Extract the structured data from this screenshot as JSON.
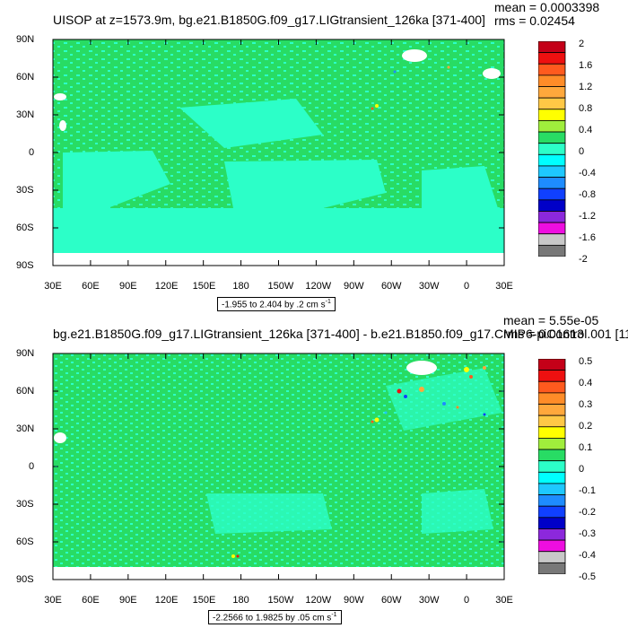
{
  "panels": [
    {
      "title": "UISOP at z=1573.9m, bg.e21.B1850G.f09_g17.LIGtransient_126ka [371-400]",
      "mean": "mean = 0.0003398",
      "rms": "rms = 0.02454",
      "range_text": "-1.955 to 2.404 by .2 cm s",
      "range_unit_exp": "-1",
      "colorbar_labels": [
        "2",
        "1.6",
        "1.2",
        "0.8",
        "0.4",
        "0",
        "-0.4",
        "-0.8",
        "-1.2",
        "-1.6",
        "-2"
      ],
      "colorbar_colors": [
        "#c40018",
        "#ee1010",
        "#ff5a1e",
        "#ff8c28",
        "#ffa83c",
        "#ffc846",
        "#ffff00",
        "#a0ee3c",
        "#28dc64",
        "#2cffc8",
        "#00ffff",
        "#1ec8ff",
        "#1e8cff",
        "#1040ff",
        "#0000c8",
        "#8c28dc",
        "#ee0ee0",
        "#c8c8c8",
        "#787878"
      ]
    },
    {
      "title": "bg.e21.B1850G.f09_g17.LIGtransient_126ka [371-400] - b.e21.B1850.f09_g17.CMIP6-piControl.001 [11",
      "mean": "mean = 5.55e-05",
      "rms": "rms = 0.01613",
      "range_text": "-2.2566 to 1.9825 by .05 cm s",
      "range_unit_exp": "-1",
      "colorbar_labels": [
        "0.5",
        "0.4",
        "0.3",
        "0.2",
        "0.1",
        "0",
        "-0.1",
        "-0.2",
        "-0.3",
        "-0.4",
        "-0.5"
      ],
      "colorbar_colors": [
        "#c40018",
        "#ee1010",
        "#ff5a1e",
        "#ff8c28",
        "#ffa83c",
        "#ffc846",
        "#ffff00",
        "#a0ee3c",
        "#28dc64",
        "#2cffc8",
        "#00ffff",
        "#1ec8ff",
        "#1e8cff",
        "#1040ff",
        "#0000c8",
        "#8c28dc",
        "#ee0ee0",
        "#c8c8c8",
        "#787878"
      ]
    }
  ],
  "lat_labels": [
    "90N",
    "60N",
    "30N",
    "0",
    "30S",
    "60S",
    "90S"
  ],
  "lon_labels": [
    "30E",
    "60E",
    "90E",
    "120E",
    "150E",
    "180",
    "150W",
    "120W",
    "90W",
    "60W",
    "30W",
    "0",
    "30E"
  ],
  "field_colors": {
    "ocean_base": "#28dc64",
    "negative_patch": "#2cffc8",
    "land": "#ffffff"
  }
}
